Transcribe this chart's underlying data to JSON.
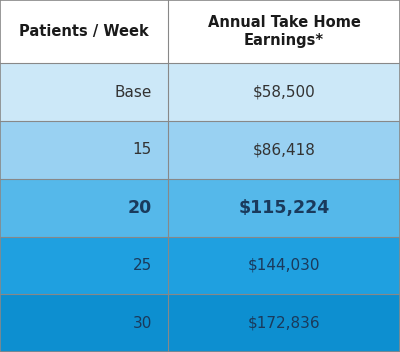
{
  "col1_header": "Patients / Week",
  "col2_header": "Annual Take Home\nEarnings*",
  "rows": [
    {
      "label": "Base",
      "value": "$58,500",
      "bold": false
    },
    {
      "label": "15",
      "value": "$86,418",
      "bold": false
    },
    {
      "label": "20",
      "value": "$115,224",
      "bold": true
    },
    {
      "label": "25",
      "value": "$144,030",
      "bold": false
    },
    {
      "label": "30",
      "value": "$172,836",
      "bold": false
    }
  ],
  "row_colors": [
    "#cce8f8",
    "#99d1f2",
    "#55b8ea",
    "#1fa0e0",
    "#0d8fd0"
  ],
  "text_colors": [
    "#333333",
    "#333333",
    "#1a3a5c",
    "#1a3a5c",
    "#1a3a5c"
  ],
  "header_bg": "#ffffff",
  "header_text_color": "#1a1a1a",
  "divider_color": "#888888",
  "col_split": 0.42,
  "border_color": "#aaaaaa"
}
